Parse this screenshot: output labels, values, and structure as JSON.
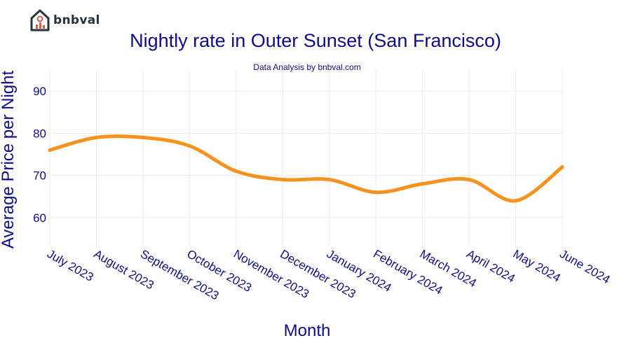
{
  "brand": {
    "name": "bnbval",
    "icon": "house-chart-icon",
    "color": "#e0574d",
    "dark": "#26323c"
  },
  "header": {
    "title": "Nightly rate in Outer Sunset (San Francisco)",
    "subtitle": "Data Analysis by bnbval.com"
  },
  "colors": {
    "text": "#0b0c8f",
    "line": "#f7921e",
    "grid": "#ebebeb"
  },
  "chart_data": {
    "type": "line",
    "title": "Nightly rate in Outer Sunset (San Francisco)",
    "subtitle": "Data Analysis by bnbval.com",
    "xlabel": "Month",
    "ylabel": "Average Price per Night",
    "categories": [
      "July 2023",
      "August 2023",
      "September 2023",
      "October 2023",
      "November 2023",
      "December 2023",
      "January 2024",
      "February 2024",
      "March 2024",
      "April 2024",
      "May 2024",
      "June 2024"
    ],
    "series": [
      {
        "values": [
          76,
          79,
          79,
          77,
          71,
          69,
          69,
          66,
          68,
          69,
          64,
          72
        ],
        "color": "#f7921e",
        "smooth": true
      }
    ],
    "yticks": [
      60,
      70,
      80,
      90
    ],
    "ylim": [
      53,
      95
    ],
    "grid": true,
    "legend": "none"
  }
}
